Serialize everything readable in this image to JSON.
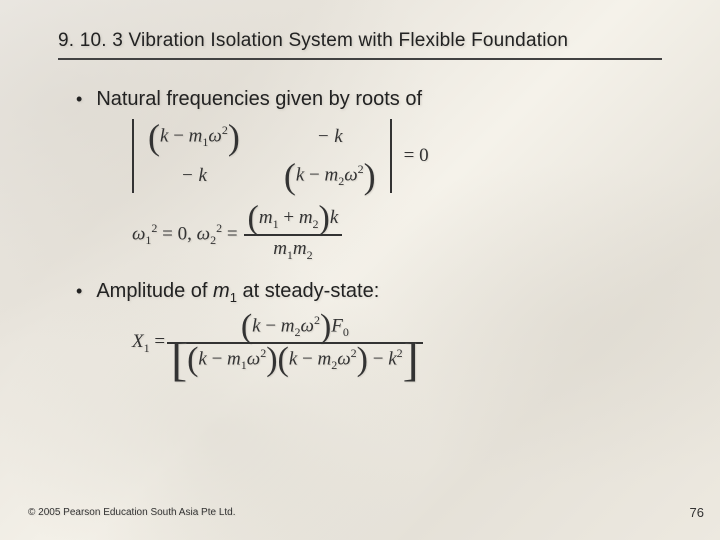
{
  "section": {
    "number": "9. 10. 3",
    "title": "Vibration Isolation System with Flexible Foundation",
    "underline_color": "#424242"
  },
  "bullets": {
    "b1": "Natural frequencies given by roots of",
    "b2_pre": "Amplitude of ",
    "b2_var": "m",
    "b2_sub": "1",
    "b2_post": " at steady-state:"
  },
  "eq1": {
    "c11_l": "(",
    "c11_k": "k",
    "c11_minus": " − ",
    "c11_m": "m",
    "c11_msub": "1",
    "c11_w": "ω",
    "c11_wsup": "2",
    "c11_r": ")",
    "c12": "− k",
    "c21": "− k",
    "c22_l": "(",
    "c22_k": "k",
    "c22_minus": " − ",
    "c22_m": "m",
    "c22_msub": "2",
    "c22_w": "ω",
    "c22_wsup": "2",
    "c22_r": ")",
    "rhs": "= 0"
  },
  "eq2": {
    "w1": "ω",
    "w1sub": "1",
    "w1sup": "2",
    "eq0": " = 0, ",
    "w2": "ω",
    "w2sub": "2",
    "w2sup": "2",
    "eq": " = ",
    "num_l": "(",
    "num_m1": "m",
    "num_m1sub": "1",
    "num_plus": " + ",
    "num_m2": "m",
    "num_m2sub": "2",
    "num_r": ")",
    "num_k": "k",
    "den_m1": "m",
    "den_m1sub": "1",
    "den_m2": "m",
    "den_m2sub": "2"
  },
  "eq3": {
    "X": "X",
    "Xsub": "1",
    "eq": " = ",
    "num_l": "(",
    "num_k": "k",
    "num_minus": " − ",
    "num_m": "m",
    "num_msub": "2",
    "num_w": "ω",
    "num_wsup": "2",
    "num_r": ")",
    "num_F": "F",
    "num_Fsub": "0",
    "den_lb": "[",
    "den_p1l": "(",
    "den_p1k": "k",
    "den_p1minus": " − ",
    "den_p1m": "m",
    "den_p1msub": "1",
    "den_p1w": "ω",
    "den_p1wsup": "2",
    "den_p1r": ")",
    "den_p2l": "(",
    "den_p2k": "k",
    "den_p2minus": " − ",
    "den_p2m": "m",
    "den_p2msub": "2",
    "den_p2w": "ω",
    "den_p2wsup": "2",
    "den_p2r": ")",
    "den_minus": " − ",
    "den_k": "k",
    "den_ksup": "2",
    "den_rb": "]"
  },
  "footer": {
    "copyright": "© 2005 Pearson Education South Asia Pte Ltd.",
    "page": "76"
  },
  "colors": {
    "text": "#222",
    "eq": "#333",
    "bg_marble": "#ede9e0"
  }
}
